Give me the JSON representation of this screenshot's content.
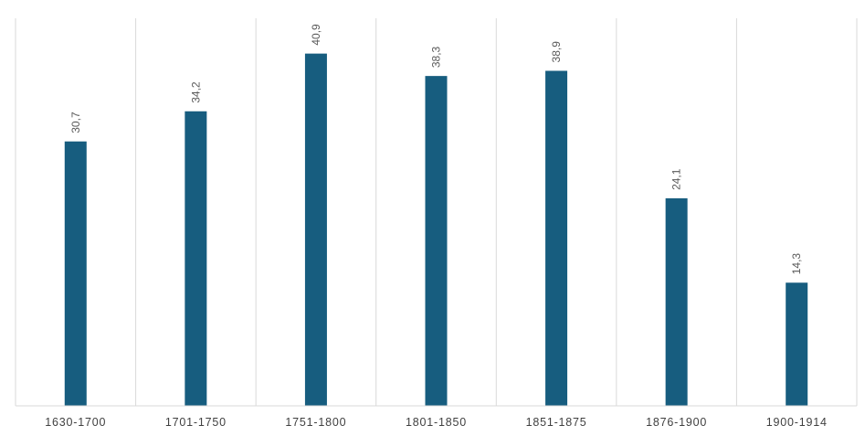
{
  "chart_data": {
    "type": "bar",
    "categories": [
      "1630-1700",
      "1701-1750",
      "1751-1800",
      "1801-1850",
      "1851-1875",
      "1876-1900",
      "1900-1914"
    ],
    "values": [
      30.7,
      34.2,
      40.9,
      38.3,
      38.9,
      24.1,
      14.3
    ],
    "data_labels": [
      "30,7",
      "34,2",
      "40,9",
      "38,3",
      "38,9",
      "24,1",
      "14,3"
    ],
    "ylim": [
      0,
      45
    ],
    "grid": "vertical category separators",
    "legend": "none",
    "bar_color": "#175d7f",
    "grid_color": "#d9d9d9",
    "axis_color": "#d9d9d9",
    "label_color": "#595959",
    "tick_color": "#404040"
  }
}
